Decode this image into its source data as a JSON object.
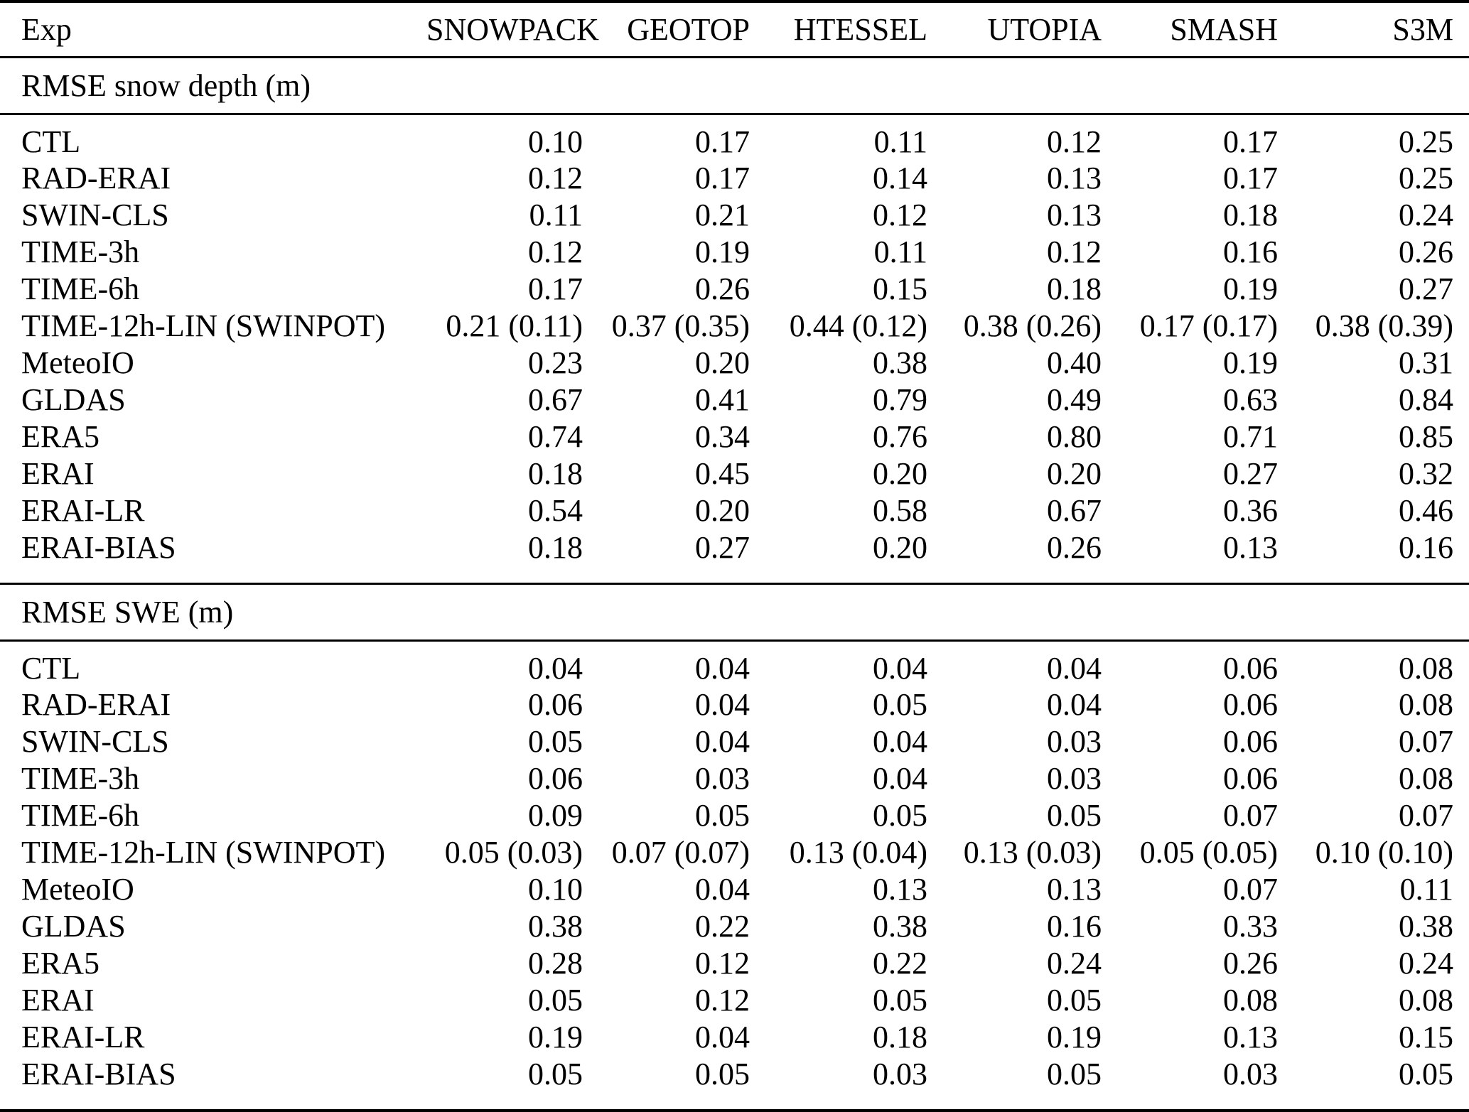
{
  "table": {
    "columns": [
      "Exp",
      "SNOWPACK",
      "GEOTOP",
      "HTESSEL",
      "UTOPIA",
      "SMASH",
      "S3M"
    ],
    "sections": [
      {
        "title": "RMSE snow depth (m)",
        "rows": [
          {
            "label": "CTL",
            "values": [
              "0.10",
              "0.17",
              "0.11",
              "0.12",
              "0.17",
              "0.25"
            ]
          },
          {
            "label": "RAD-ERAI",
            "values": [
              "0.12",
              "0.17",
              "0.14",
              "0.13",
              "0.17",
              "0.25"
            ]
          },
          {
            "label": "SWIN-CLS",
            "values": [
              "0.11",
              "0.21",
              "0.12",
              "0.13",
              "0.18",
              "0.24"
            ]
          },
          {
            "label": "TIME-3h",
            "values": [
              "0.12",
              "0.19",
              "0.11",
              "0.12",
              "0.16",
              "0.26"
            ]
          },
          {
            "label": "TIME-6h",
            "values": [
              "0.17",
              "0.26",
              "0.15",
              "0.18",
              "0.19",
              "0.27"
            ]
          },
          {
            "label": "TIME-12h-LIN (SWINPOT)",
            "values": [
              "0.21 (0.11)",
              "0.37 (0.35)",
              "0.44 (0.12)",
              "0.38 (0.26)",
              "0.17 (0.17)",
              "0.38 (0.39)"
            ]
          },
          {
            "label": "MeteoIO",
            "values": [
              "0.23",
              "0.20",
              "0.38",
              "0.40",
              "0.19",
              "0.31"
            ]
          },
          {
            "label": "GLDAS",
            "values": [
              "0.67",
              "0.41",
              "0.79",
              "0.49",
              "0.63",
              "0.84"
            ]
          },
          {
            "label": "ERA5",
            "values": [
              "0.74",
              "0.34",
              "0.76",
              "0.80",
              "0.71",
              "0.85"
            ]
          },
          {
            "label": "ERAI",
            "values": [
              "0.18",
              "0.45",
              "0.20",
              "0.20",
              "0.27",
              "0.32"
            ]
          },
          {
            "label": "ERAI-LR",
            "values": [
              "0.54",
              "0.20",
              "0.58",
              "0.67",
              "0.36",
              "0.46"
            ]
          },
          {
            "label": "ERAI-BIAS",
            "values": [
              "0.18",
              "0.27",
              "0.20",
              "0.26",
              "0.13",
              "0.16"
            ]
          }
        ]
      },
      {
        "title": "RMSE SWE (m)",
        "rows": [
          {
            "label": "CTL",
            "values": [
              "0.04",
              "0.04",
              "0.04",
              "0.04",
              "0.06",
              "0.08"
            ]
          },
          {
            "label": "RAD-ERAI",
            "values": [
              "0.06",
              "0.04",
              "0.05",
              "0.04",
              "0.06",
              "0.08"
            ]
          },
          {
            "label": "SWIN-CLS",
            "values": [
              "0.05",
              "0.04",
              "0.04",
              "0.03",
              "0.06",
              "0.07"
            ]
          },
          {
            "label": "TIME-3h",
            "values": [
              "0.06",
              "0.03",
              "0.04",
              "0.03",
              "0.06",
              "0.08"
            ]
          },
          {
            "label": "TIME-6h",
            "values": [
              "0.09",
              "0.05",
              "0.05",
              "0.05",
              "0.07",
              "0.07"
            ]
          },
          {
            "label": "TIME-12h-LIN (SWINPOT)",
            "values": [
              "0.05 (0.03)",
              "0.07 (0.07)",
              "0.13 (0.04)",
              "0.13 (0.03)",
              "0.05 (0.05)",
              "0.10 (0.10)"
            ]
          },
          {
            "label": "MeteoIO",
            "values": [
              "0.10",
              "0.04",
              "0.13",
              "0.13",
              "0.07",
              "0.11"
            ]
          },
          {
            "label": "GLDAS",
            "values": [
              "0.38",
              "0.22",
              "0.38",
              "0.16",
              "0.33",
              "0.38"
            ]
          },
          {
            "label": "ERA5",
            "values": [
              "0.28",
              "0.12",
              "0.22",
              "0.24",
              "0.26",
              "0.24"
            ]
          },
          {
            "label": "ERAI",
            "values": [
              "0.05",
              "0.12",
              "0.05",
              "0.05",
              "0.08",
              "0.08"
            ]
          },
          {
            "label": "ERAI-LR",
            "values": [
              "0.19",
              "0.04",
              "0.18",
              "0.19",
              "0.13",
              "0.15"
            ]
          },
          {
            "label": "ERAI-BIAS",
            "values": [
              "0.05",
              "0.05",
              "0.03",
              "0.05",
              "0.03",
              "0.05"
            ]
          }
        ]
      }
    ]
  }
}
